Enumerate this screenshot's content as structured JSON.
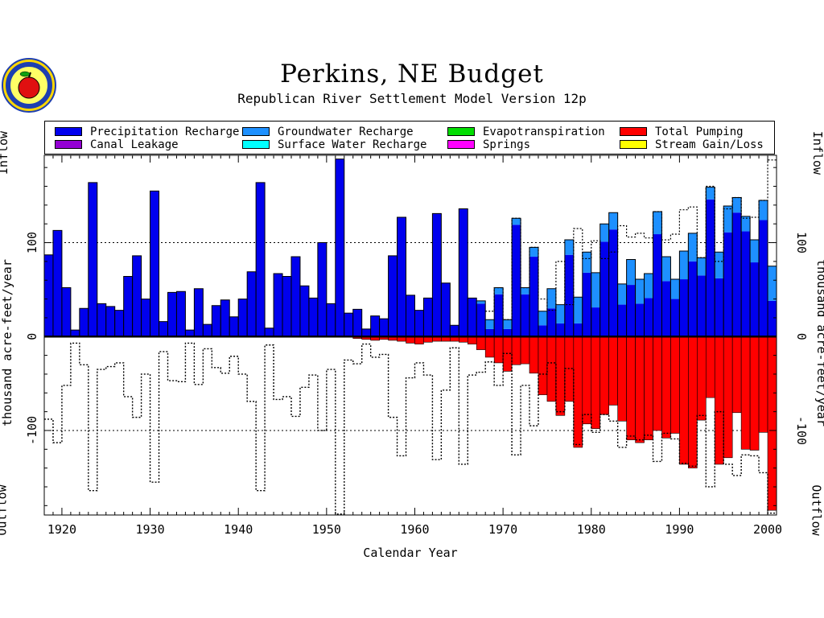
{
  "header": {
    "title": "Perkins, NE Budget",
    "subtitle": "Republican River Settlement Model Version 12p"
  },
  "side_labels": {
    "inflow": "Inflow",
    "outflow": "Outflow",
    "units": "thousand acre-feet/year"
  },
  "colors": {
    "precipitation": "#0000ee",
    "groundwater": "#1e90ff",
    "evapotranspiration": "#00dd00",
    "pumping": "#ff0000",
    "canal": "#9400d3",
    "surface": "#00ffff",
    "springs": "#ff00ff",
    "stream": "#ffff00"
  },
  "chart_data": {
    "type": "bar",
    "title": "Perkins, NE Budget",
    "subtitle": "Republican River Settlement Model Version 12p",
    "xlabel": "Calendar Year",
    "ylabel": "thousand acre-feet/year",
    "xlim": [
      1918,
      2001
    ],
    "ylim": [
      -190,
      193
    ],
    "xticks": [
      1920,
      1930,
      1940,
      1950,
      1960,
      1970,
      1980,
      1990,
      2000
    ],
    "yticks": [
      -100,
      0,
      100
    ],
    "ytick_labels": [
      "-100",
      "0",
      "100"
    ],
    "x_tick_labels": [
      "1920",
      "1930",
      "1940",
      "1950",
      "1960",
      "1970",
      "1980",
      "1990",
      "2000"
    ],
    "legend_position": "top",
    "grid": "dotted lines at +100 and -100",
    "legend": [
      {
        "key": "precipitation",
        "label": "Precipitation Recharge"
      },
      {
        "key": "groundwater",
        "label": "Groundwater Recharge"
      },
      {
        "key": "evapotranspiration",
        "label": "Evapotranspiration"
      },
      {
        "key": "pumping",
        "label": "Total Pumping"
      },
      {
        "key": "canal",
        "label": "Canal Leakage"
      },
      {
        "key": "surface",
        "label": "Surface Water Recharge"
      },
      {
        "key": "springs",
        "label": "Springs"
      },
      {
        "key": "stream",
        "label": "Stream Gain/Loss"
      }
    ],
    "years": [
      1918,
      1919,
      1920,
      1921,
      1922,
      1923,
      1924,
      1925,
      1926,
      1927,
      1928,
      1929,
      1930,
      1931,
      1932,
      1933,
      1934,
      1935,
      1936,
      1937,
      1938,
      1939,
      1940,
      1941,
      1942,
      1943,
      1944,
      1945,
      1946,
      1947,
      1948,
      1949,
      1950,
      1951,
      1952,
      1953,
      1954,
      1955,
      1956,
      1957,
      1958,
      1959,
      1960,
      1961,
      1962,
      1963,
      1964,
      1965,
      1966,
      1967,
      1968,
      1969,
      1970,
      1971,
      1972,
      1973,
      1974,
      1975,
      1976,
      1977,
      1978,
      1979,
      1980,
      1981,
      1982,
      1983,
      1984,
      1985,
      1986,
      1987,
      1988,
      1989,
      1990,
      1991,
      1992,
      1993,
      1994,
      1995,
      1996,
      1997,
      1998,
      1999,
      2000
    ],
    "series": [
      {
        "name": "Precipitation Recharge",
        "key": "precipitation",
        "values": [
          87,
          113,
          52,
          7,
          30,
          164,
          35,
          32,
          28,
          64,
          86,
          40,
          155,
          16,
          47,
          48,
          7,
          51,
          13,
          33,
          39,
          21,
          40,
          69,
          164,
          9,
          67,
          64,
          85,
          54,
          41,
          100,
          35,
          189,
          25,
          29,
          8,
          22,
          19,
          86,
          127,
          44,
          28,
          41,
          131,
          57,
          12,
          136,
          41,
          35,
          8,
          45,
          8,
          119,
          45,
          85,
          12,
          30,
          14,
          87,
          14,
          68,
          31,
          101,
          114,
          34,
          55,
          35,
          41,
          109,
          59,
          40,
          61,
          80,
          65,
          146,
          62,
          111,
          132,
          112,
          79,
          124,
          38
        ]
      },
      {
        "name": "Groundwater Recharge",
        "key": "groundwater",
        "values": [
          0,
          0,
          0,
          0,
          0,
          0,
          0,
          0,
          0,
          0,
          0,
          0,
          0,
          0,
          0,
          0,
          0,
          0,
          0,
          0,
          0,
          0,
          0,
          0,
          0,
          0,
          0,
          0,
          0,
          0,
          0,
          0,
          0,
          0,
          0,
          0,
          0,
          0,
          0,
          0,
          0,
          0,
          0,
          0,
          0,
          0,
          0,
          0,
          0,
          3,
          10,
          7,
          10,
          7,
          7,
          10,
          15,
          21,
          20,
          16,
          28,
          22,
          37,
          19,
          18,
          22,
          27,
          26,
          26,
          24,
          26,
          21,
          30,
          30,
          19,
          13,
          28,
          28,
          16,
          16,
          24,
          21,
          37
        ]
      },
      {
        "name": "Total Pumping",
        "key": "pumping",
        "values": [
          0,
          0,
          0,
          0,
          0,
          0,
          0,
          0,
          0,
          0,
          0,
          0,
          0,
          0,
          0,
          0,
          0,
          0,
          0,
          0,
          0,
          0,
          0,
          0,
          0,
          0,
          0,
          0,
          0,
          0,
          0,
          0,
          0,
          0,
          0,
          2,
          3,
          4,
          3,
          4,
          5,
          7,
          8,
          6,
          5,
          5,
          5,
          6,
          8,
          14,
          22,
          28,
          37,
          30,
          29,
          39,
          62,
          69,
          84,
          69,
          118,
          93,
          98,
          83,
          73,
          90,
          110,
          113,
          110,
          100,
          108,
          103,
          136,
          140,
          89,
          65,
          136,
          129,
          81,
          120,
          121,
          102,
          185
        ]
      },
      {
        "name": "",
        "key": "net_outline",
        "values": [
          -88,
          -113,
          -52,
          -7,
          -30,
          -164,
          -35,
          -32,
          -28,
          -64,
          -86,
          -40,
          -155,
          -16,
          -47,
          -48,
          -7,
          -51,
          -13,
          -33,
          -39,
          -21,
          -40,
          -69,
          -164,
          -9,
          -67,
          -64,
          -85,
          -54,
          -41,
          -100,
          -35,
          -189,
          -25,
          -29,
          -8,
          -22,
          -19,
          -86,
          -127,
          -44,
          -28,
          -41,
          -131,
          -57,
          -12,
          -136,
          -41,
          -38,
          -27,
          -52,
          -18,
          -126,
          -52,
          -95,
          -40,
          -28,
          -80,
          -34,
          -115,
          -83,
          -102,
          -83,
          -90,
          -118,
          -106,
          -110,
          -105,
          -133,
          -103,
          -109,
          -135,
          -138,
          -84,
          -160,
          -80,
          -136,
          -148,
          -126,
          -127,
          -145,
          -188
        ]
      }
    ]
  }
}
